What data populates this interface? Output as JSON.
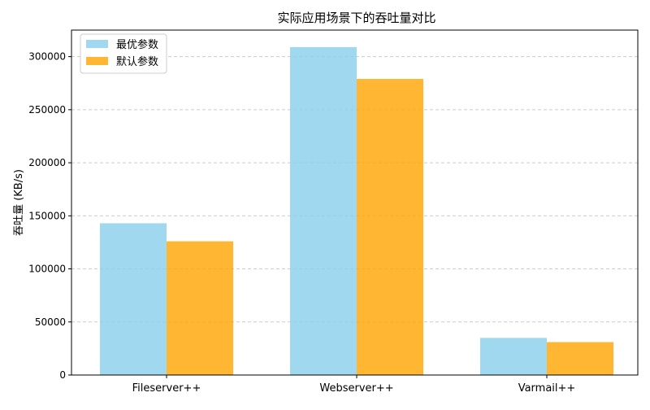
{
  "chart_data": {
    "type": "bar",
    "title": "实际应用场景下的吞吐量对比",
    "xlabel": "",
    "ylabel": "吞吐量 (KB/s)",
    "categories": [
      "Fileserver++",
      "Webserver++",
      "Varmail++"
    ],
    "series": [
      {
        "name": "最优参数",
        "values": [
          143000,
          309000,
          35000
        ],
        "color": "#87CEEB"
      },
      {
        "name": "默认参数",
        "values": [
          126000,
          279000,
          31000
        ],
        "color": "#FFA500"
      }
    ],
    "ylim": [
      0,
      325000
    ],
    "yticks": [
      0,
      50000,
      100000,
      150000,
      200000,
      250000,
      300000
    ],
    "grid": "y-dashed",
    "legend": "top-left"
  }
}
